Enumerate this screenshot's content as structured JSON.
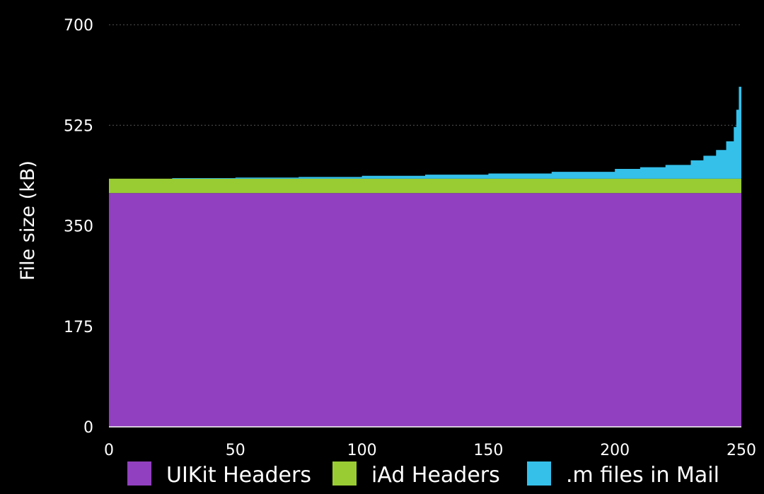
{
  "chart_data": {
    "type": "area",
    "ylabel": "File size (kB)",
    "xlabel": "",
    "xlim": [
      0,
      250
    ],
    "ylim": [
      0,
      700
    ],
    "yticks": [
      0,
      175,
      350,
      525,
      700
    ],
    "xticks": [
      0,
      50,
      100,
      150,
      200,
      250
    ],
    "grid": true,
    "legend_position": "bottom",
    "stacked": true,
    "series": [
      {
        "name": "UIKit Headers",
        "color": "#9140bf",
        "x": [
          0,
          250
        ],
        "values": [
          407,
          407
        ]
      },
      {
        "name": "iAd Headers",
        "color": "#99cc33",
        "x": [
          0,
          250
        ],
        "values": [
          25,
          25
        ]
      },
      {
        "name": ".m files in Mail",
        "color": "#35c0ea",
        "x": [
          0,
          25,
          50,
          75,
          100,
          125,
          150,
          175,
          200,
          210,
          220,
          230,
          235,
          240,
          244,
          247,
          248,
          249,
          250
        ],
        "values": [
          0,
          1,
          2,
          3,
          5,
          7,
          9,
          12,
          17,
          20,
          24,
          32,
          40,
          50,
          65,
          90,
          120,
          160,
          200
        ]
      }
    ]
  }
}
